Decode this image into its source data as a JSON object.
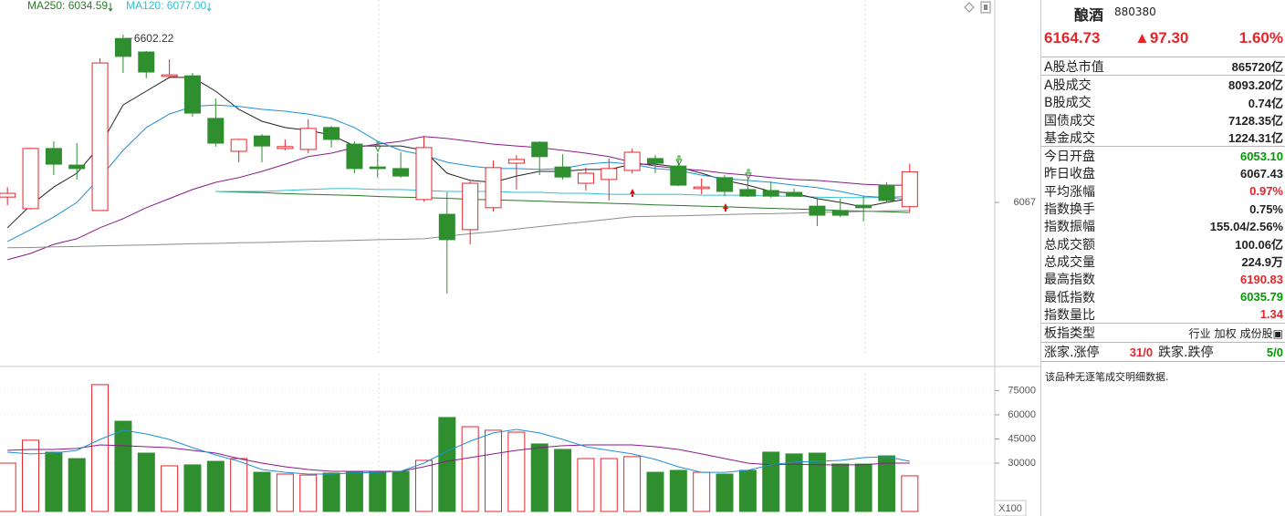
{
  "chart_data": [
    {
      "type": "candlestick",
      "open": [
        6084,
        6047,
        6239,
        6186,
        6041,
        6590,
        6547,
        6469,
        6471,
        6335,
        6230,
        6279,
        6239,
        6236,
        6306,
        6253,
        6180,
        6175,
        6076,
        6029,
        5980,
        6050,
        6192,
        6259,
        6180,
        6128,
        6140,
        6169,
        6207,
        6183,
        6111,
        6146,
        6108,
        6105,
        6099,
        6055,
        6041,
        6058,
        6122,
        6053.1
      ],
      "high": [
        6116,
        6242,
        6262,
        6256,
        6527,
        6602.22,
        6550,
        6524,
        6480,
        6399,
        6270,
        6285,
        6268,
        6332,
        6311,
        6262,
        6224,
        6227,
        6277,
        6099,
        6134,
        6201,
        6218,
        6262,
        6221,
        6178,
        6207,
        6239,
        6218,
        6201,
        6143,
        6154,
        6146,
        6134,
        6111,
        6082,
        6079,
        6087,
        6131,
        6190.83
      ],
      "low": [
        6058,
        6044,
        6154,
        6140,
        6041,
        6480,
        6463,
        6463,
        6341,
        6245,
        6195,
        6195,
        6233,
        6224,
        6242,
        6160,
        6146,
        6146,
        6070,
        5776,
        5933,
        6038,
        6108,
        6154,
        6140,
        6105,
        6073,
        6160,
        6160,
        6119,
        6093,
        6087,
        6084,
        6082,
        6084,
        5991,
        6020,
        6006,
        6067,
        6035.79
      ],
      "close": [
        6096,
        6239,
        6189,
        6175,
        6512,
        6533,
        6483,
        6474,
        6352,
        6256,
        6268,
        6247,
        6245,
        6303,
        6268,
        6175,
        6175,
        6151,
        6242,
        5948,
        6128,
        6178,
        6204,
        6213,
        6148,
        6160,
        6175,
        6227,
        6192,
        6122,
        6116,
        6102,
        6087,
        6087,
        6087,
        6026,
        6026,
        6050,
        6073,
        6164.73
      ],
      "up_color": "#e4262c",
      "down_color": "#2f8f2f",
      "ylim": [
        5549,
        6713
      ],
      "yticks": [
        6067
      ],
      "series": [
        {
          "name": "MA250: 6034.59",
          "color": "#2a7a2a",
          "values": [
            null,
            null,
            null,
            null,
            null,
            null,
            null,
            null,
            null,
            6102,
            6100,
            6098,
            6095,
            6093,
            6091,
            6089,
            6086,
            6084,
            6082,
            6080,
            6077,
            6075,
            6073,
            6071,
            6068,
            6066,
            6064,
            6062,
            6059,
            6057,
            6055,
            6053,
            6050,
            6048,
            6046,
            6044,
            6041,
            6039,
            6037,
            6034.59
          ]
        },
        {
          "name": "MA120: 6077.00",
          "color": "#30c0d0",
          "values": [
            null,
            null,
            null,
            null,
            null,
            null,
            null,
            null,
            null,
            6102,
            6102,
            6102,
            6105,
            6108,
            6111,
            6111,
            6108,
            6108,
            6105,
            6102,
            6102,
            6102,
            6099,
            6099,
            6096,
            6096,
            6093,
            6093,
            6093,
            6093,
            6090,
            6090,
            6090,
            6087,
            6087,
            6084,
            6082,
            6082,
            6082,
            6077
          ]
        },
        {
          "color": "#222222",
          "values": [
            5986,
            6058,
            6116,
            6160,
            6247,
            6378,
            6422,
            6466,
            6466,
            6422,
            6364,
            6326,
            6306,
            6297,
            6282,
            6247,
            6247,
            6247,
            6233,
            6160,
            6137,
            6131,
            6151,
            6166,
            6166,
            6172,
            6172,
            6189,
            6189,
            6180,
            6160,
            6137,
            6122,
            6102,
            6096,
            6079,
            6067,
            6052,
            6067,
            6079
          ]
        },
        {
          "color": "#1f8fd6",
          "values": [
            5942,
            5980,
            6020,
            6067,
            6146,
            6233,
            6306,
            6349,
            6373,
            6378,
            6373,
            6364,
            6358,
            6349,
            6335,
            6306,
            6262,
            6233,
            6218,
            6195,
            6183,
            6175,
            6175,
            6172,
            6175,
            6189,
            6195,
            6189,
            6175,
            6169,
            6154,
            6143,
            6137,
            6131,
            6122,
            6114,
            6102,
            6087,
            6082,
            6087
          ]
        },
        {
          "color": "#8a1a8a",
          "values": [
            5884,
            5904,
            5933,
            5951,
            5986,
            6015,
            6050,
            6079,
            6108,
            6131,
            6146,
            6166,
            6189,
            6213,
            6224,
            6242,
            6253,
            6262,
            6277,
            6271,
            6262,
            6253,
            6247,
            6242,
            6233,
            6224,
            6213,
            6195,
            6183,
            6175,
            6169,
            6160,
            6154,
            6146,
            6140,
            6137,
            6131,
            6125,
            6122,
            6122
          ]
        },
        {
          "color": "#8c8c8c",
          "values": [
            5922,
            5923,
            5925,
            5926,
            5928,
            5930,
            5931,
            5933,
            5935,
            5936,
            5938,
            5939,
            5941,
            5943,
            5944,
            5946,
            5948,
            5949,
            5951,
            5959,
            5967,
            5974,
            5982,
            5990,
            5998,
            6005,
            6013,
            6021,
            6023,
            6024,
            6026,
            6028,
            6030,
            6031,
            6033,
            6035,
            6036,
            6038,
            6040,
            6041
          ]
        }
      ]
    },
    {
      "type": "bar",
      "values": [
        30000,
        44200,
        36800,
        32800,
        78700,
        56000,
        36200,
        28300,
        28900,
        31100,
        32800,
        24300,
        23200,
        22600,
        23800,
        24300,
        24300,
        24900,
        31700,
        58300,
        52600,
        50400,
        49200,
        41900,
        38500,
        32800,
        32800,
        34000,
        24300,
        25500,
        24300,
        23200,
        25500,
        36800,
        35700,
        36200,
        29400,
        29400,
        34500,
        22100
      ],
      "ylim": [
        0,
        89400
      ],
      "yticks": [
        75000,
        60000,
        45000,
        30000
      ],
      "unit_label": "X100",
      "grid": true,
      "series": [
        {
          "color": "#8a1a8a",
          "values": [
            37900,
            38500,
            38500,
            39100,
            41300,
            40800,
            40200,
            39600,
            37900,
            36200,
            32800,
            30000,
            27700,
            26000,
            24900,
            24900,
            24900,
            24900,
            27700,
            31100,
            33400,
            35700,
            37900,
            39600,
            40800,
            41300,
            41300,
            41300,
            40200,
            38500,
            35700,
            32800,
            30000,
            28900,
            29400,
            28900,
            28900,
            28900,
            30000,
            30000
          ]
        },
        {
          "color": "#1f8fd6",
          "values": [
            36800,
            35700,
            36200,
            37900,
            44700,
            50400,
            48100,
            44700,
            39600,
            35100,
            31100,
            26000,
            24300,
            23200,
            23200,
            23800,
            24300,
            24900,
            30000,
            37400,
            43600,
            48700,
            50900,
            48700,
            44700,
            40200,
            37900,
            35700,
            32300,
            27700,
            24300,
            24300,
            25500,
            28900,
            30600,
            31100,
            31700,
            33400,
            34000,
            31100
          ]
        }
      ]
    }
  ],
  "panel": {
    "name": "酿酒",
    "code": "880380",
    "price": "6164.73",
    "change": "▲97.30",
    "change_pct": "1.60%",
    "header_color": "#e4262c",
    "groups": [
      [
        {
          "label": "A股总市值",
          "value": "865720亿"
        }
      ],
      [
        {
          "label": "A股成交",
          "value": "8093.20亿"
        },
        {
          "label": "B股成交",
          "value": "0.74亿"
        },
        {
          "label": "国债成交",
          "value": "7128.35亿"
        },
        {
          "label": "基金成交",
          "value": "1224.31亿"
        }
      ],
      [
        {
          "label": "今日开盘",
          "value": "6053.10",
          "color": "#009a00"
        },
        {
          "label": "昨日收盘",
          "value": "6067.43"
        },
        {
          "label": "平均涨幅",
          "value": "0.97%",
          "color": "#e4262c"
        },
        {
          "label": "指数换手",
          "value": "0.75%"
        },
        {
          "label": "指数振幅",
          "value": "155.04/2.56%"
        },
        {
          "label": "总成交额",
          "value": "100.06亿"
        },
        {
          "label": "总成交量",
          "value": "224.9万"
        },
        {
          "label": "最高指数",
          "value": "6190.83",
          "color": "#e4262c"
        },
        {
          "label": "最低指数",
          "value": "6035.79",
          "color": "#009a00"
        },
        {
          "label": "指数量比",
          "value": "1.34",
          "color": "#e4262c"
        }
      ]
    ],
    "type_row": {
      "label": "板指类型",
      "options": [
        "行业",
        "加权",
        "成份股▣"
      ]
    },
    "limit_row": {
      "up_label": "涨家.涨停",
      "up_value": "31/0",
      "up_color": "#e4262c",
      "down_label": "跌家.跌停",
      "down_value": "5/0",
      "down_color": "#009a00"
    },
    "note": "该品种无逐笔成交明细数据."
  }
}
